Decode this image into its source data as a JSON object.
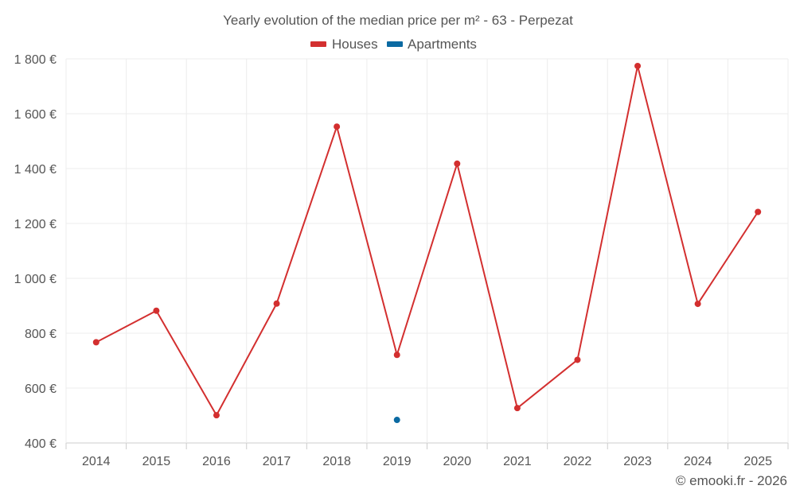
{
  "chart_data": {
    "type": "line",
    "title": "Yearly evolution of the median price per m² - 63 - Perpezat",
    "categories": [
      "2014",
      "2015",
      "2016",
      "2017",
      "2018",
      "2019",
      "2020",
      "2021",
      "2022",
      "2023",
      "2024",
      "2025"
    ],
    "series": [
      {
        "name": "Houses",
        "color": "#d32f2f",
        "values": [
          767,
          882,
          501,
          908,
          1553,
          721,
          1418,
          527,
          703,
          1774,
          907,
          1242
        ]
      },
      {
        "name": "Apartments",
        "color": "#0b6aa2",
        "values": [
          null,
          null,
          null,
          null,
          null,
          484,
          null,
          null,
          null,
          null,
          null,
          null
        ]
      }
    ],
    "ylim": [
      400,
      1800
    ],
    "yticks": [
      400,
      600,
      800,
      1000,
      1200,
      1400,
      1600,
      1800
    ],
    "ytick_labels": [
      "400 €",
      "600 €",
      "800 €",
      "1 000 €",
      "1 200 €",
      "1 400 €",
      "1 600 €",
      "1 800 €"
    ],
    "xlabel": "",
    "ylabel": "",
    "grid": true,
    "legend_position": "top-center"
  },
  "footer": {
    "credit": "© emooki.fr - 2026"
  }
}
